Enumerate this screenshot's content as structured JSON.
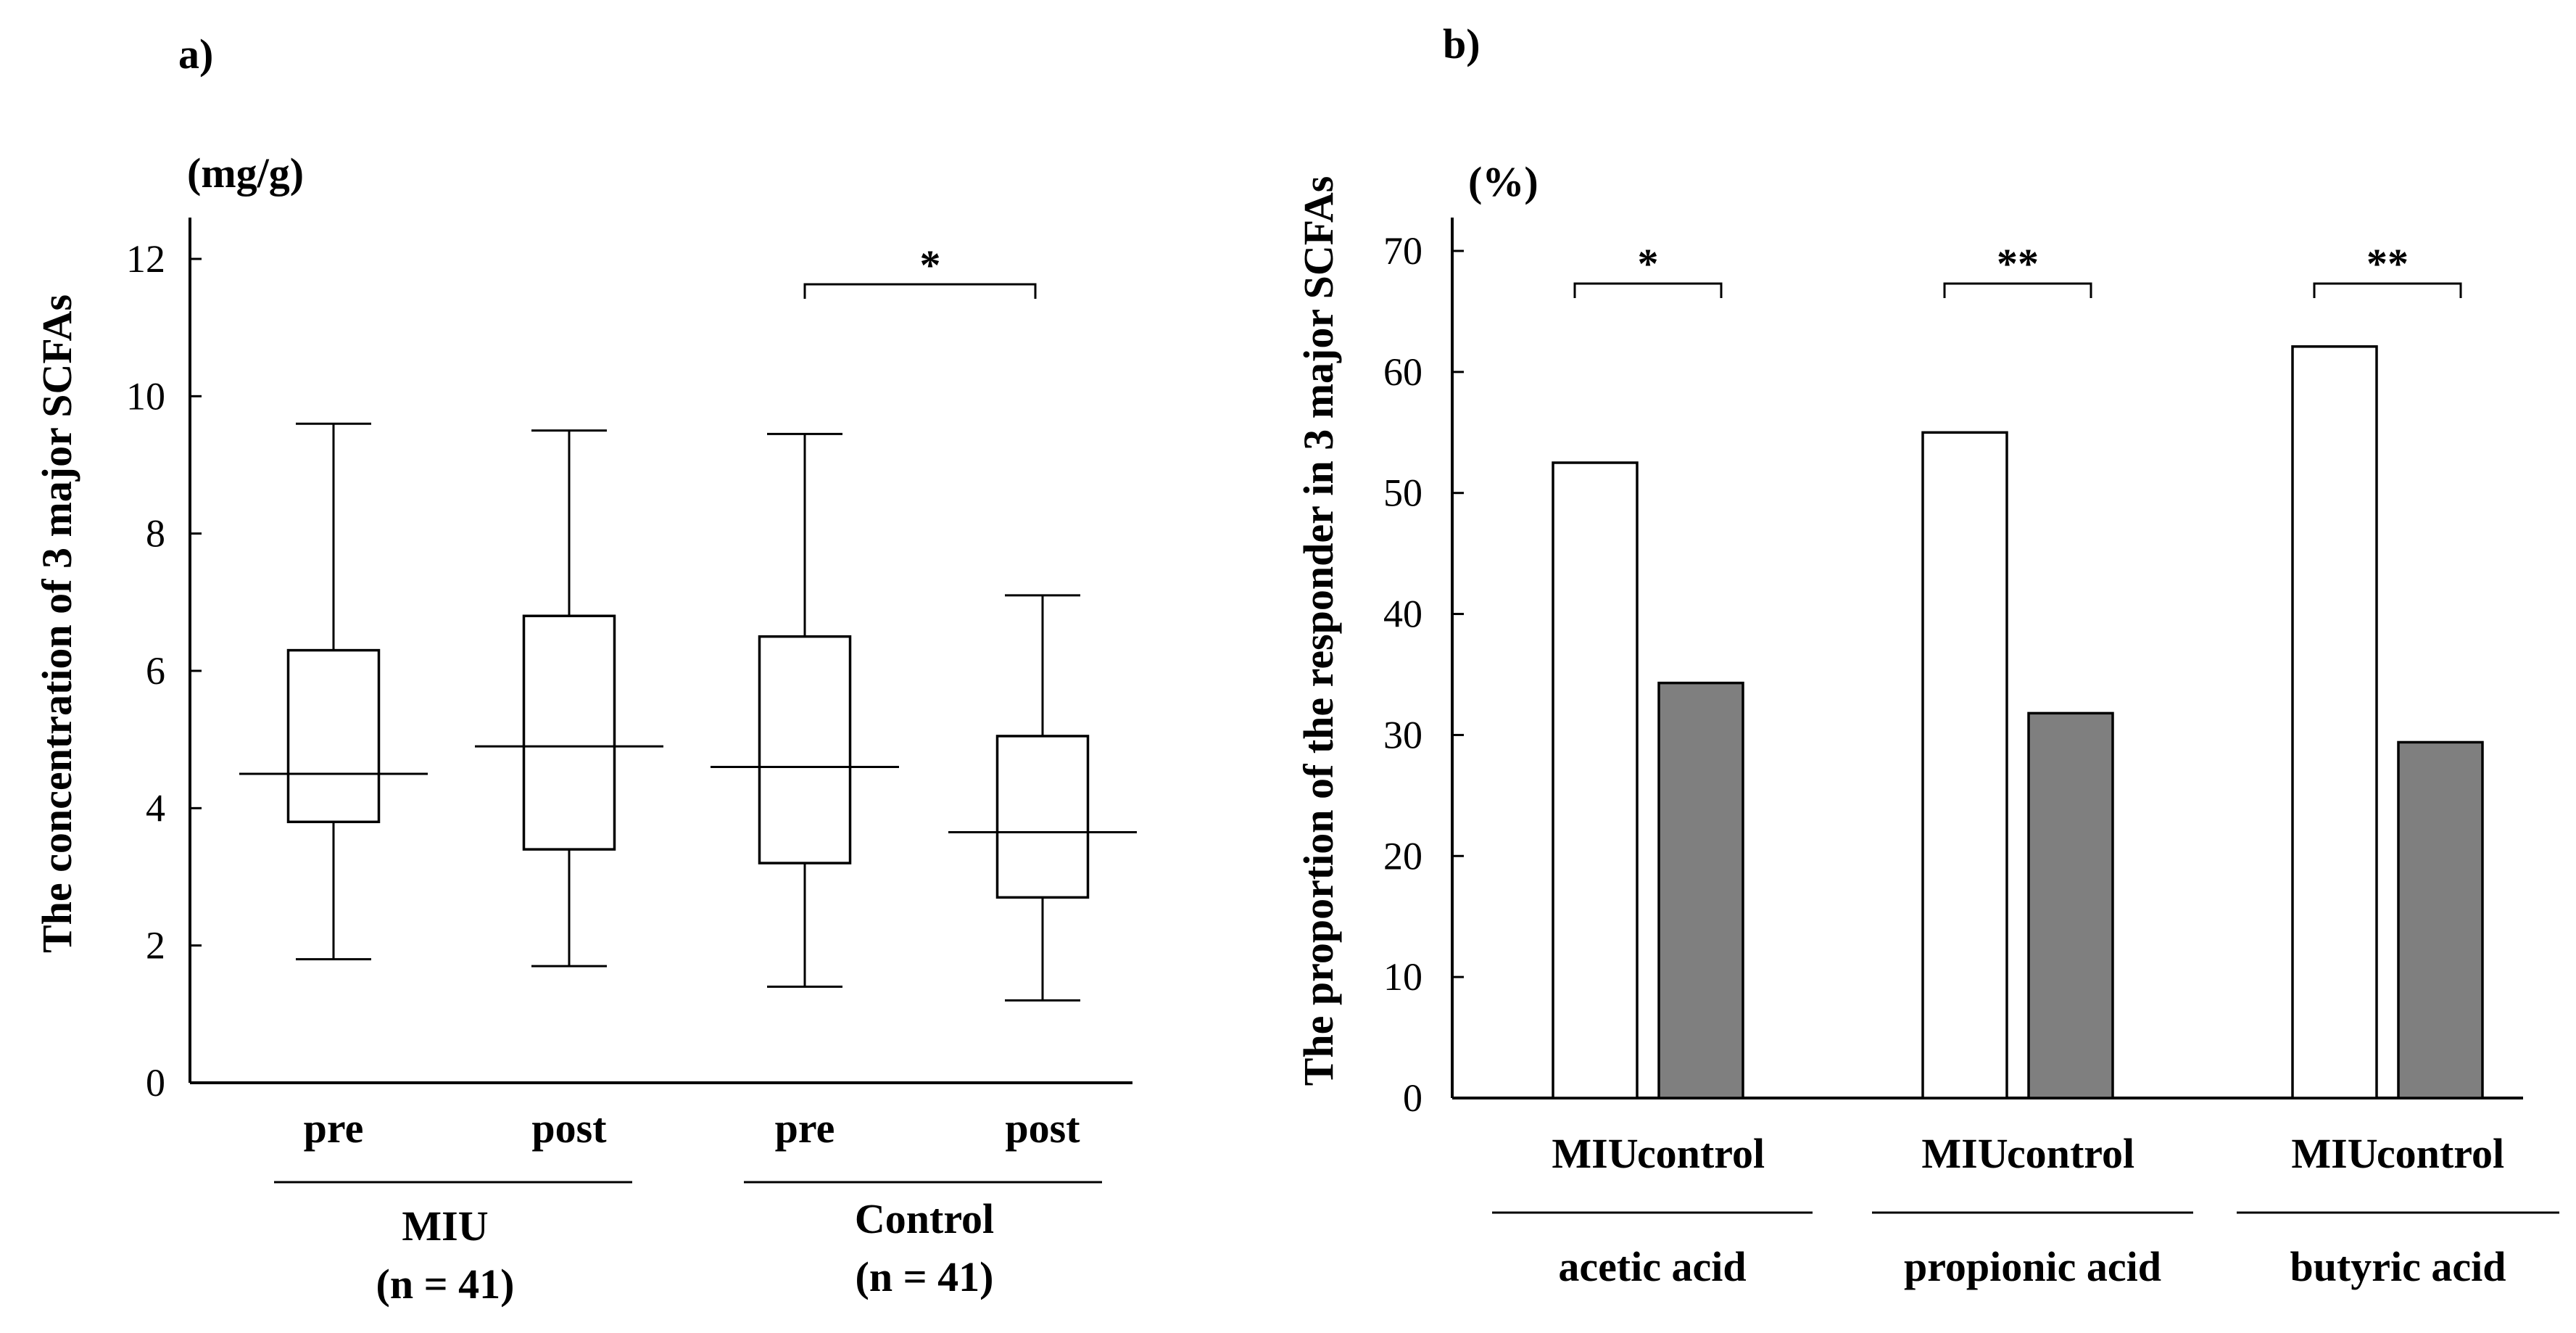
{
  "chart_data": [
    {
      "panel_label": "a)",
      "type": "box",
      "unit_label": "(mg/g)",
      "ylabel": "The concentration of 3 major SCFAs",
      "ylim": [
        0,
        12
      ],
      "yticks": [
        "0",
        "2",
        "4",
        "6",
        "8",
        "10",
        "12"
      ],
      "categories": [
        "pre",
        "post",
        "pre",
        "post"
      ],
      "groups": [
        {
          "name": "MIU",
          "n_label": "(n = 41)"
        },
        {
          "name": "Control",
          "n_label": "(n = 41)"
        }
      ],
      "boxes": [
        {
          "group": "MIU",
          "label": "pre",
          "min": 1.8,
          "q1": 3.8,
          "median": 4.5,
          "q3": 6.3,
          "max": 9.6
        },
        {
          "group": "MIU",
          "label": "post",
          "min": 1.7,
          "q1": 3.4,
          "median": 4.9,
          "q3": 6.8,
          "max": 9.5
        },
        {
          "group": "Control",
          "label": "pre",
          "min": 1.4,
          "q1": 3.2,
          "median": 4.6,
          "q3": 6.5,
          "max": 9.45
        },
        {
          "group": "Control",
          "label": "post",
          "min": 1.2,
          "q1": 2.7,
          "median": 3.65,
          "q3": 5.05,
          "max": 7.1
        }
      ],
      "annotations": [
        {
          "between": "Control pre-post",
          "text": "*"
        }
      ]
    },
    {
      "panel_label": "b)",
      "type": "bar",
      "unit_label": "(%)",
      "ylabel": "The proportion of the responder in 3 major SCFAs",
      "ylim": [
        0,
        70
      ],
      "yticks": [
        "0",
        "10",
        "20",
        "30",
        "40",
        "50",
        "60",
        "70"
      ],
      "series_names": [
        "MIU",
        "control"
      ],
      "colors": {
        "MIU": "#ffffff",
        "control": "#7f7f7f"
      },
      "groups": [
        {
          "name": "acetic acid",
          "values": [
            52.5,
            34.3
          ],
          "significance": "*"
        },
        {
          "name": "propionic acid",
          "values": [
            55.0,
            31.8
          ],
          "significance": "**"
        },
        {
          "name": "butyric acid",
          "values": [
            62.1,
            29.4
          ],
          "significance": "**"
        }
      ]
    }
  ]
}
